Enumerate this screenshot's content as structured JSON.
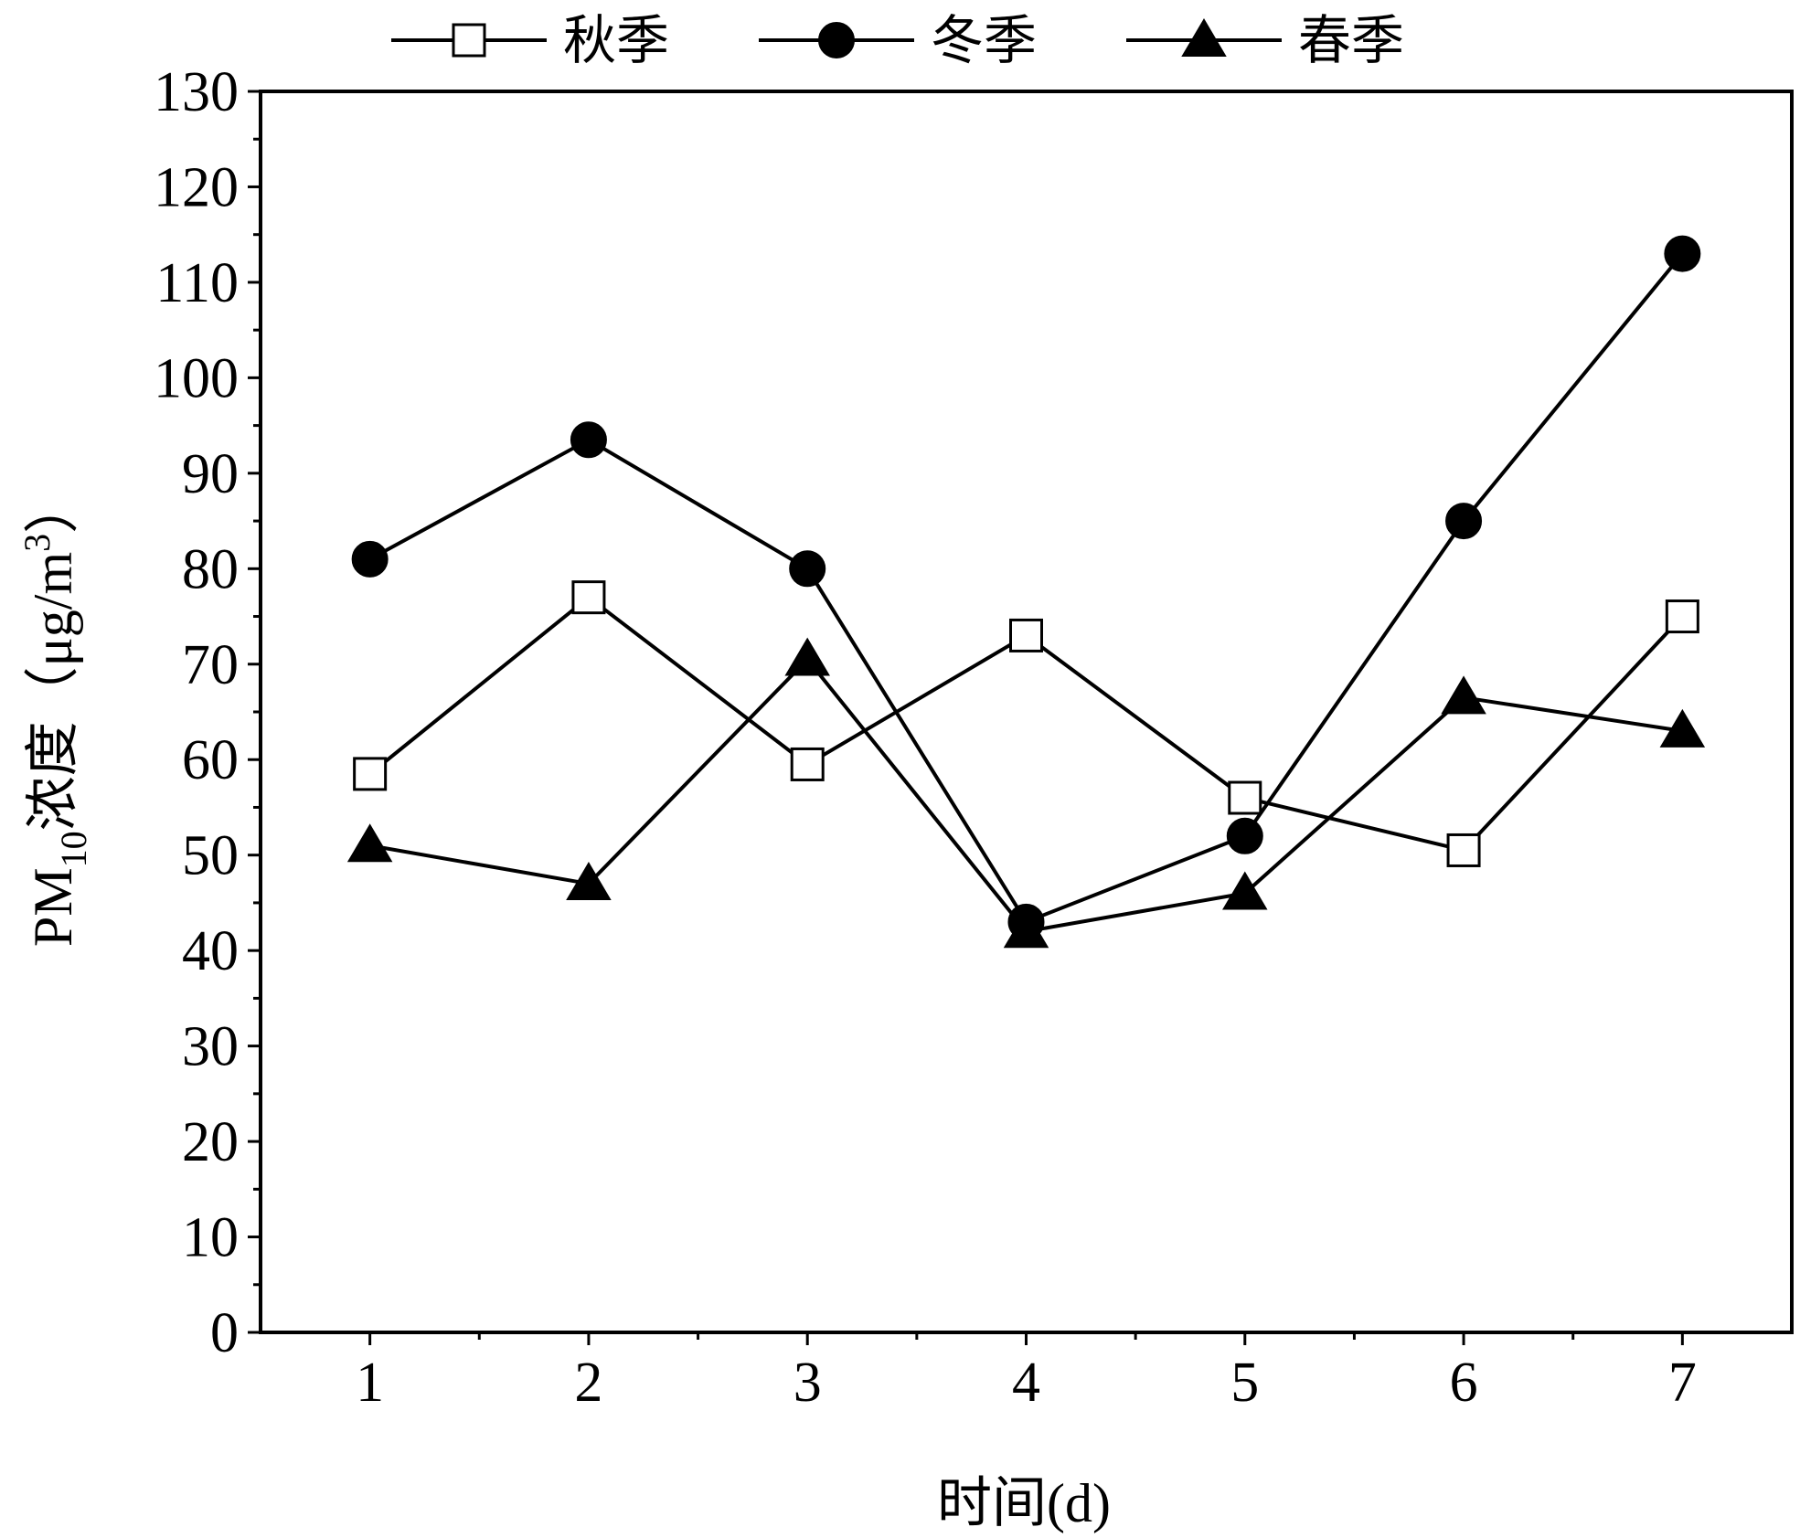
{
  "chart_data": {
    "type": "line",
    "x": [
      1,
      2,
      3,
      4,
      5,
      6,
      7
    ],
    "xlabel": "时间(d)",
    "ylabel_main": "PM",
    "ylabel_sub": "10",
    "ylabel_mid": "浓度（μg/m",
    "ylabel_sup": "3",
    "ylabel_end": "）",
    "xlim": [
      0.5,
      7.5
    ],
    "ylim": [
      0,
      130
    ],
    "xticks": [
      "1",
      "2",
      "3",
      "4",
      "5",
      "6",
      "7"
    ],
    "yticks": [
      "0",
      "10",
      "20",
      "30",
      "40",
      "50",
      "60",
      "70",
      "80",
      "90",
      "100",
      "110",
      "120",
      "130"
    ],
    "legend_position": "top",
    "grid": false,
    "series": [
      {
        "name": "秋季",
        "marker": "open-square",
        "color": "#000000",
        "values": [
          58.5,
          77,
          59.5,
          73,
          56,
          50.5,
          75
        ]
      },
      {
        "name": "冬季",
        "marker": "filled-circle",
        "color": "#000000",
        "values": [
          81,
          93.5,
          80,
          43,
          52,
          85,
          113
        ]
      },
      {
        "name": "春季",
        "marker": "filled-triangle",
        "color": "#000000",
        "values": [
          51,
          47,
          70.5,
          42,
          46,
          66.5,
          63
        ]
      }
    ]
  }
}
